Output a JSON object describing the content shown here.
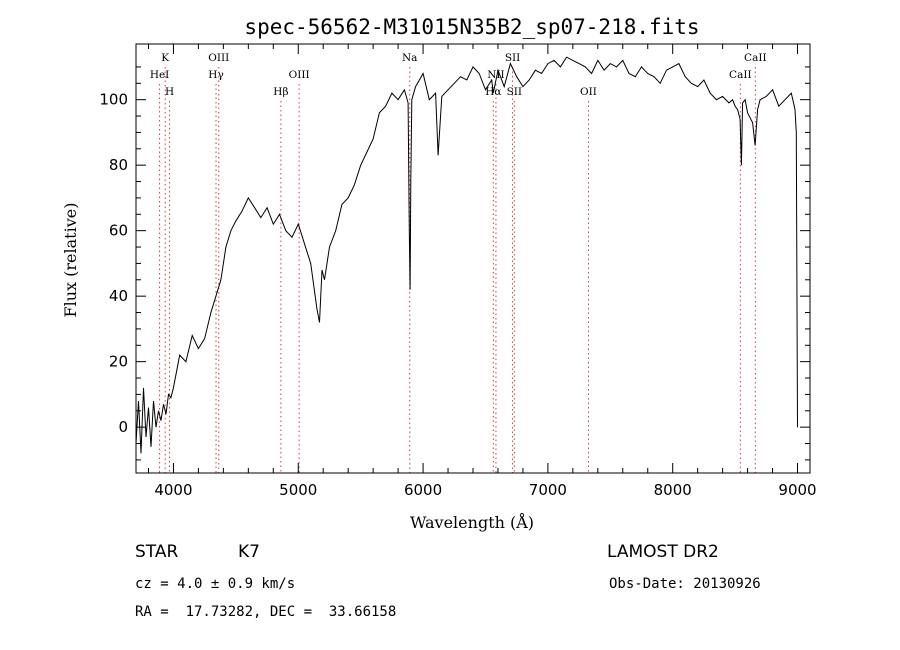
{
  "chart_data": {
    "type": "line",
    "title": "spec-56562-M31015N35B2_sp07-218.fits",
    "xlabel": "Wavelength (Å)",
    "ylabel": "Flux (relative)",
    "xlim": [
      3700,
      9100
    ],
    "ylim": [
      -14,
      117
    ],
    "xticks": [
      4000,
      5000,
      6000,
      7000,
      8000,
      9000
    ],
    "yticks": [
      0,
      20,
      40,
      60,
      80,
      100
    ],
    "grid": false,
    "series": [
      {
        "color": "#000000",
        "x": [
          3700,
          3720,
          3740,
          3760,
          3780,
          3800,
          3820,
          3840,
          3860,
          3880,
          3900,
          3920,
          3940,
          3960,
          3980,
          4000,
          4050,
          4100,
          4150,
          4200,
          4250,
          4300,
          4340,
          4380,
          4420,
          4460,
          4500,
          4550,
          4600,
          4650,
          4700,
          4750,
          4800,
          4850,
          4900,
          4950,
          5000,
          5050,
          5100,
          5150,
          5170,
          5190,
          5210,
          5250,
          5300,
          5350,
          5400,
          5450,
          5500,
          5550,
          5600,
          5650,
          5700,
          5750,
          5800,
          5850,
          5880,
          5890,
          5896,
          5902,
          5910,
          5940,
          6000,
          6050,
          6100,
          6120,
          6150,
          6200,
          6250,
          6300,
          6350,
          6400,
          6450,
          6500,
          6550,
          6563,
          6600,
          6650,
          6700,
          6750,
          6800,
          6850,
          6900,
          6950,
          7000,
          7050,
          7100,
          7150,
          7200,
          7250,
          7300,
          7350,
          7400,
          7450,
          7500,
          7550,
          7600,
          7650,
          7700,
          7750,
          7800,
          7850,
          7900,
          7950,
          8000,
          8050,
          8100,
          8150,
          8200,
          8250,
          8300,
          8350,
          8400,
          8450,
          8480,
          8500,
          8520,
          8540,
          8550,
          8560,
          8580,
          8600,
          8640,
          8660,
          8680,
          8700,
          8750,
          8800,
          8850,
          8900,
          8950,
          8980,
          8990,
          9000
        ],
        "y": [
          -5,
          8,
          -8,
          12,
          -3,
          6,
          -6,
          8,
          0,
          5,
          2,
          7,
          4,
          10,
          9,
          12,
          22,
          20,
          28,
          24,
          27,
          35,
          40,
          45,
          55,
          60,
          63,
          66,
          70,
          67,
          64,
          67,
          62,
          65,
          60,
          58,
          62,
          56,
          50,
          36,
          32,
          48,
          45,
          55,
          60,
          68,
          70,
          74,
          80,
          84,
          88,
          96,
          98,
          102,
          100,
          103,
          99,
          60,
          42,
          75,
          100,
          104,
          108,
          100,
          102,
          83,
          101,
          103,
          105,
          107,
          106,
          110,
          108,
          103,
          106,
          102,
          109,
          104,
          111,
          107,
          104,
          106,
          109,
          108,
          111,
          112,
          110,
          113,
          112,
          111,
          110,
          108,
          112,
          109,
          111,
          110,
          112,
          108,
          107,
          110,
          108,
          107,
          105,
          109,
          110,
          111,
          107,
          105,
          104,
          106,
          102,
          100,
          101,
          99,
          100,
          98,
          97,
          94,
          80,
          99,
          100,
          96,
          93,
          86,
          97,
          100,
          101,
          103,
          98,
          100,
          102,
          97,
          90,
          0
        ]
      }
    ],
    "line_markers": [
      {
        "label": "K",
        "x": 3934,
        "row": 0
      },
      {
        "label": "HeI",
        "x": 3889,
        "row": 1
      },
      {
        "label": "H",
        "x": 3969,
        "row": 2
      },
      {
        "label": "OIII",
        "x": 4363,
        "row": 0
      },
      {
        "label": "Hγ",
        "x": 4341,
        "row": 1
      },
      {
        "label": "Hβ",
        "x": 4861,
        "row": 2
      },
      {
        "label": "OIII",
        "x": 5007,
        "row": 1
      },
      {
        "label": "Na",
        "x": 5893,
        "row": 0
      },
      {
        "label": "SII",
        "x": 6717,
        "row": 0
      },
      {
        "label": "NII",
        "x": 6584,
        "row": 1
      },
      {
        "label": "Hα",
        "x": 6563,
        "row": 2
      },
      {
        "label": "SII",
        "x": 6731,
        "row": 2
      },
      {
        "label": "OII",
        "x": 7325,
        "row": 2
      },
      {
        "label": "CaII",
        "x": 8542,
        "row": 1
      },
      {
        "label": "CaII",
        "x": 8662,
        "row": 0
      }
    ]
  },
  "info": {
    "class_type": "STAR",
    "subclass": "K7",
    "survey": "LAMOST DR2",
    "cz": "cz = 4.0 ± 0.9 km/s",
    "obs_date": "Obs-Date: 20130926",
    "coords": "RA =  17.73282, DEC =  33.66158"
  }
}
